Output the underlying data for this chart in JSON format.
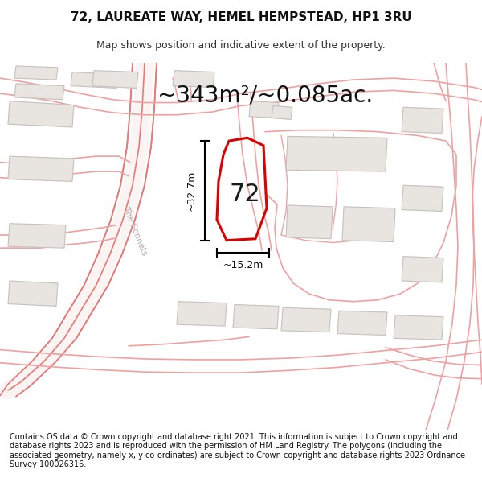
{
  "title": "72, LAUREATE WAY, HEMEL HEMPSTEAD, HP1 3RU",
  "subtitle": "Map shows position and indicative extent of the property.",
  "area_text": "~343m²/~0.085ac.",
  "width_label": "~15.2m",
  "height_label": "~32.7m",
  "number_label": "72",
  "footer": "Contains OS data © Crown copyright and database right 2021. This information is subject to Crown copyright and database rights 2023 and is reproduced with the permission of HM Land Registry. The polygons (including the associated geometry, namely x, y co-ordinates) are subject to Crown copyright and database rights 2023 Ordnance Survey 100026316.",
  "bg_color": "#ffffff",
  "map_bg": "#ffffff",
  "property_color": "#dd0000",
  "road_color": "#f0a0a0",
  "road_color2": "#e87878",
  "building_color": "#e8e4e0",
  "building_edge": "#c8c0bc",
  "title_fontsize": 11,
  "subtitle_fontsize": 9,
  "area_fontsize": 20,
  "label_fontsize": 9,
  "number_fontsize": 22,
  "footer_fontsize": 7,
  "sonnets_label_color": "#b0a8a4"
}
